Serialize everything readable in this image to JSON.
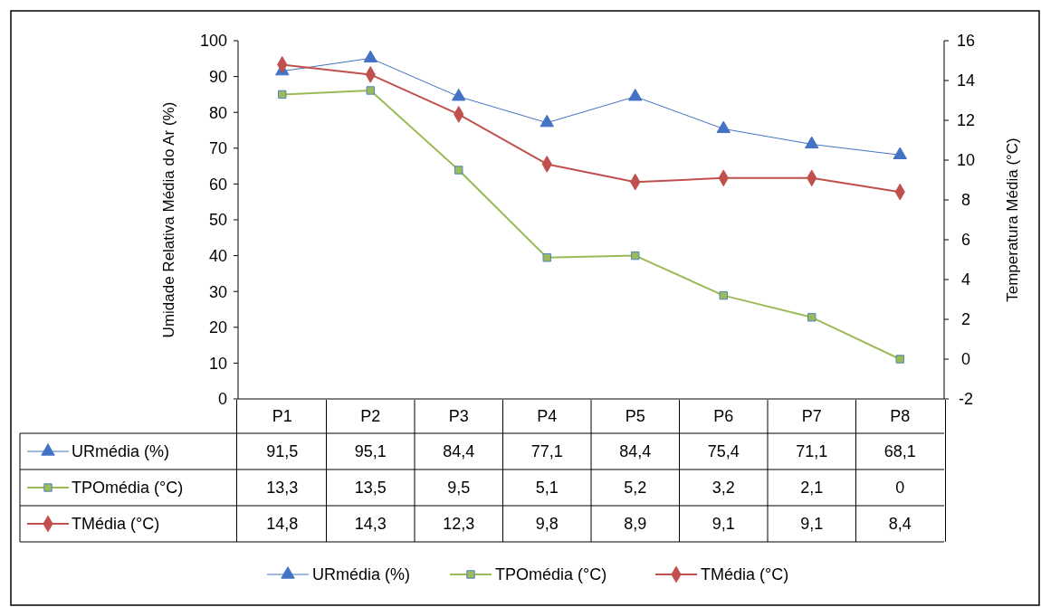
{
  "chart_data": {
    "type": "line",
    "ylabel": "Umidade Relativa Média do Ar (%)",
    "y2label": "Temperatura Média (°C)",
    "categories": [
      "P1",
      "P2",
      "P3",
      "P4",
      "P5",
      "P6",
      "P7",
      "P8"
    ],
    "ylim": [
      0,
      100
    ],
    "yticks": [
      0,
      10,
      20,
      30,
      40,
      50,
      60,
      70,
      80,
      90,
      100
    ],
    "y2lim": [
      -2,
      16
    ],
    "y2ticks": [
      -2,
      0,
      2,
      4,
      6,
      8,
      10,
      12,
      14,
      16
    ],
    "legend": "bottom",
    "data_labels": true,
    "grid": false,
    "series": [
      {
        "name": "URmédia (%)",
        "color": "#4472c4",
        "marker": "triangle",
        "values": [
          91.5,
          95.1,
          84.4,
          77.1,
          84.4,
          75.4,
          71.1,
          68.1
        ],
        "value_labels": [
          "91,5",
          "95,1",
          "84,4",
          "77,1",
          "84,4",
          "75,4",
          "71,1",
          "68,1"
        ]
      },
      {
        "name": "TPOmédia (°C)",
        "color": "#9bbb59",
        "marker": "square",
        "axis": "y2",
        "values": [
          13.3,
          13.5,
          9.5,
          5.1,
          5.2,
          3.2,
          2.1,
          0
        ],
        "value_labels": [
          "13,3",
          "13,5",
          "9,5",
          "5,1",
          "5,2",
          "3,2",
          "2,1",
          "0"
        ]
      },
      {
        "name": "TMédia (°C)",
        "color": "#c0504d",
        "marker": "diamond",
        "axis": "y2",
        "values": [
          14.8,
          14.3,
          12.3,
          9.8,
          8.9,
          9.1,
          9.1,
          8.4
        ],
        "value_labels": [
          "14,8",
          "14,3",
          "12,3",
          "9,8",
          "8,9",
          "9,1",
          "9,1",
          "8,4"
        ]
      }
    ]
  }
}
